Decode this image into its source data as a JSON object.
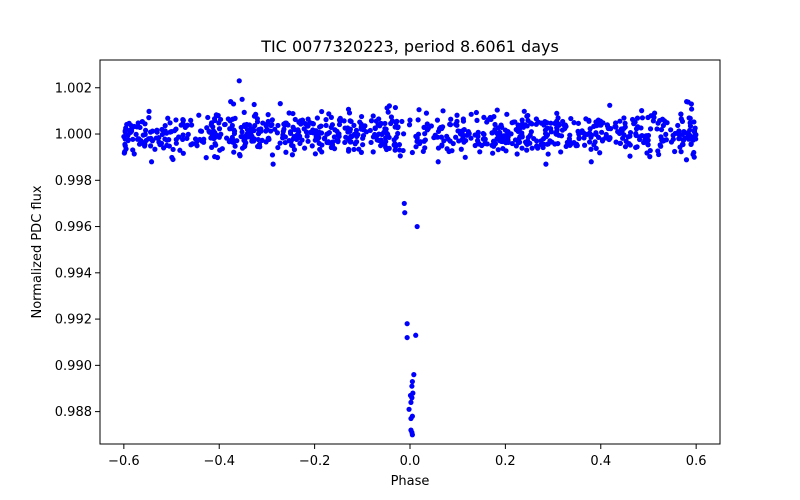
{
  "chart_data": {
    "type": "scatter",
    "title": "TIC 0077320223, period 8.6061 days",
    "xlabel": "Phase",
    "ylabel": "Normalized PDC flux",
    "xlim": [
      -0.65,
      0.65
    ],
    "ylim": [
      0.9866,
      1.0032
    ],
    "xticks": [
      -0.6,
      -0.4,
      -0.2,
      0.0,
      0.2,
      0.4,
      0.6
    ],
    "xtick_labels": [
      "−0.6",
      "−0.4",
      "−0.2",
      "0.0",
      "0.2",
      "0.4",
      "0.6"
    ],
    "yticks": [
      0.988,
      0.99,
      0.992,
      0.994,
      0.996,
      0.998,
      1.0,
      1.002
    ],
    "ytick_labels": [
      "0.988",
      "0.990",
      "0.992",
      "0.994",
      "0.996",
      "0.998",
      "1.000",
      "1.002"
    ],
    "grid": false,
    "color": "#0000ff",
    "series": [
      {
        "name": "flux",
        "baseline": {
          "x_range": [
            -0.6,
            0.6
          ],
          "center": 1.0,
          "scatter": 0.00045,
          "n_points": 900,
          "gap": [
            -0.012,
            0.012
          ]
        },
        "points": [
          [
            -0.358,
            1.0023
          ],
          [
            -0.352,
            1.0015
          ],
          [
            -0.37,
            1.0013
          ],
          [
            -0.376,
            1.0014
          ],
          [
            -0.399,
            0.9993
          ],
          [
            -0.497,
            0.9989
          ],
          [
            -0.287,
            0.9987
          ],
          [
            0.285,
            0.9987
          ],
          [
            0.58,
            1.0014
          ],
          [
            0.59,
            1.0013
          ],
          [
            0.595,
            0.9992
          ],
          [
            0.596,
            0.999
          ],
          [
            0.005,
            0.9992
          ],
          [
            0.0,
            1.0006
          ],
          [
            -0.001,
            1.0004
          ],
          [
            -0.012,
            0.997
          ],
          [
            -0.011,
            0.9966
          ],
          [
            0.015,
            0.996
          ],
          [
            -0.006,
            0.9918
          ],
          [
            -0.006,
            0.9912
          ],
          [
            0.012,
            0.9913
          ],
          [
            0.008,
            0.9896
          ],
          [
            0.005,
            0.9893
          ],
          [
            0.004,
            0.9891
          ],
          [
            0.006,
            0.9888
          ],
          [
            0.001,
            0.9887
          ],
          [
            0.004,
            0.9886
          ],
          [
            0.002,
            0.9884
          ],
          [
            -0.002,
            0.9881
          ],
          [
            0.005,
            0.9878
          ],
          [
            0.002,
            0.9877
          ],
          [
            0.002,
            0.9872
          ],
          [
            0.004,
            0.9871
          ],
          [
            0.005,
            0.987
          ]
        ]
      }
    ]
  }
}
